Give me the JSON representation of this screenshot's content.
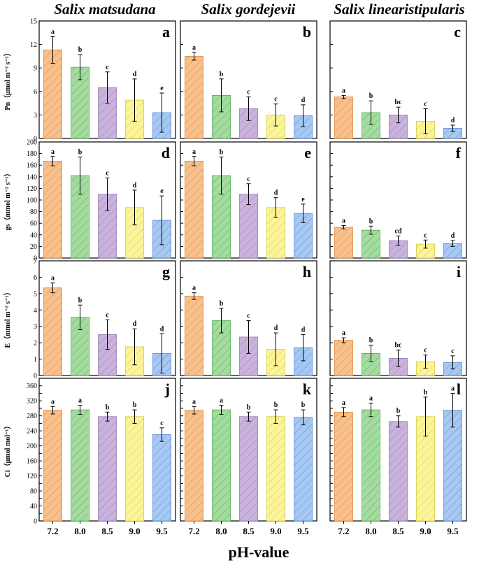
{
  "chart_data": {
    "type": "bar",
    "title": "",
    "xlabel": "pH-value",
    "categories": [
      "7.2",
      "8.0",
      "8.5",
      "9.0",
      "9.5"
    ],
    "columns": [
      "Salix matsudana",
      "Salix gordejevii",
      "Salix linearistipularis"
    ],
    "bar_colors": [
      "#f7c08c",
      "#a6dba0",
      "#c9b3dc",
      "#fbf49a",
      "#a7c8f2"
    ],
    "bar_edge_colors": [
      "#e0883e",
      "#4fae5a",
      "#9a7cb8",
      "#d8cc40",
      "#5d8ed4"
    ],
    "rows": [
      {
        "ylabel": "Pn（μmol m⁻² s⁻¹）",
        "ylim": [
          0,
          15
        ],
        "yticks": [
          0,
          3,
          6,
          9,
          12,
          15
        ],
        "panels": [
          {
            "letter": "a",
            "values": [
              11.3,
              9.1,
              6.5,
              4.9,
              3.3
            ],
            "errors": [
              1.7,
              1.6,
              2.0,
              2.7,
              2.5
            ],
            "labels": [
              "a",
              "b",
              "c",
              "d",
              "e"
            ]
          },
          {
            "letter": "b",
            "values": [
              10.5,
              5.5,
              3.8,
              3.0,
              2.9
            ],
            "errors": [
              0.5,
              2.1,
              1.5,
              1.4,
              1.4
            ],
            "labels": [
              "a",
              "b",
              "c",
              "c",
              "d"
            ]
          },
          {
            "letter": "c",
            "values": [
              5.3,
              3.3,
              3.0,
              2.2,
              1.3
            ],
            "errors": [
              0.2,
              1.5,
              1.0,
              1.6,
              0.4
            ],
            "labels": [
              "a",
              "b",
              "bc",
              "c",
              "d"
            ]
          }
        ]
      },
      {
        "ylabel": "gs（mmol m⁻² s⁻¹）",
        "ylim": [
          0,
          200
        ],
        "yticks": [
          0,
          20,
          40,
          60,
          80,
          100,
          120,
          140,
          160,
          180,
          200
        ],
        "panels": [
          {
            "letter": "d",
            "values": [
              167,
              142,
              110,
              87,
              65
            ],
            "errors": [
              8,
              32,
              28,
              30,
              42
            ],
            "labels": [
              "a",
              "b",
              "c",
              "d",
              "e"
            ]
          },
          {
            "letter": "e",
            "values": [
              167,
              142,
              110,
              87,
              77
            ],
            "errors": [
              8,
              32,
              18,
              17,
              16
            ],
            "labels": [
              "a",
              "b",
              "c",
              "d",
              "e"
            ]
          },
          {
            "letter": "f",
            "values": [
              53,
              48,
              30,
              24,
              25
            ],
            "errors": [
              3,
              7,
              8,
              7,
              5
            ],
            "labels": [
              "a",
              "b",
              "cd",
              "c",
              "d"
            ]
          }
        ]
      },
      {
        "ylabel": "E（mmol m⁻² s⁻¹）",
        "ylim": [
          0,
          7
        ],
        "yticks": [
          0,
          1,
          2,
          3,
          4,
          5,
          6,
          7
        ],
        "panels": [
          {
            "letter": "g",
            "values": [
              5.35,
              3.55,
              2.5,
              1.75,
              1.35
            ],
            "errors": [
              0.3,
              0.75,
              0.9,
              1.1,
              1.2
            ],
            "labels": [
              "a",
              "b",
              "c",
              "d",
              "d"
            ]
          },
          {
            "letter": "h",
            "values": [
              4.85,
              3.35,
              2.35,
              1.6,
              1.7
            ],
            "errors": [
              0.2,
              0.75,
              1.0,
              1.0,
              0.8
            ],
            "labels": [
              "a",
              "b",
              "c",
              "d",
              "d"
            ]
          },
          {
            "letter": "i",
            "values": [
              2.15,
              1.35,
              1.05,
              0.85,
              0.8
            ],
            "errors": [
              0.15,
              0.5,
              0.5,
              0.4,
              0.4
            ],
            "labels": [
              "a",
              "b",
              "bc",
              "c",
              "c"
            ]
          }
        ]
      },
      {
        "ylabel": "Ci（μmol mol⁻¹）",
        "ylim": [
          0,
          380
        ],
        "yticks": [
          0,
          20,
          40,
          60,
          80,
          100,
          120,
          140,
          160,
          180,
          200,
          220,
          240,
          260,
          280,
          300,
          320,
          340,
          360
        ],
        "ytick_labels": [
          0,
          40,
          80,
          120,
          160,
          200,
          240,
          280,
          320,
          360
        ],
        "panels": [
          {
            "letter": "j",
            "values": [
              295,
              296,
              278,
              278,
              230
            ],
            "errors": [
              10,
              12,
              12,
              18,
              18
            ],
            "labels": [
              "a",
              "a",
              "b",
              "b",
              "c"
            ]
          },
          {
            "letter": "k",
            "values": [
              295,
              296,
              278,
              278,
              276
            ],
            "errors": [
              10,
              12,
              12,
              18,
              20
            ],
            "labels": [
              "a",
              "a",
              "b",
              "b",
              "b"
            ]
          },
          {
            "letter": "l",
            "values": [
              290,
              296,
              265,
              278,
              295
            ],
            "errors": [
              12,
              18,
              15,
              52,
              45
            ],
            "labels": [
              "a",
              "a",
              "b",
              "b",
              "a"
            ]
          }
        ]
      }
    ]
  }
}
